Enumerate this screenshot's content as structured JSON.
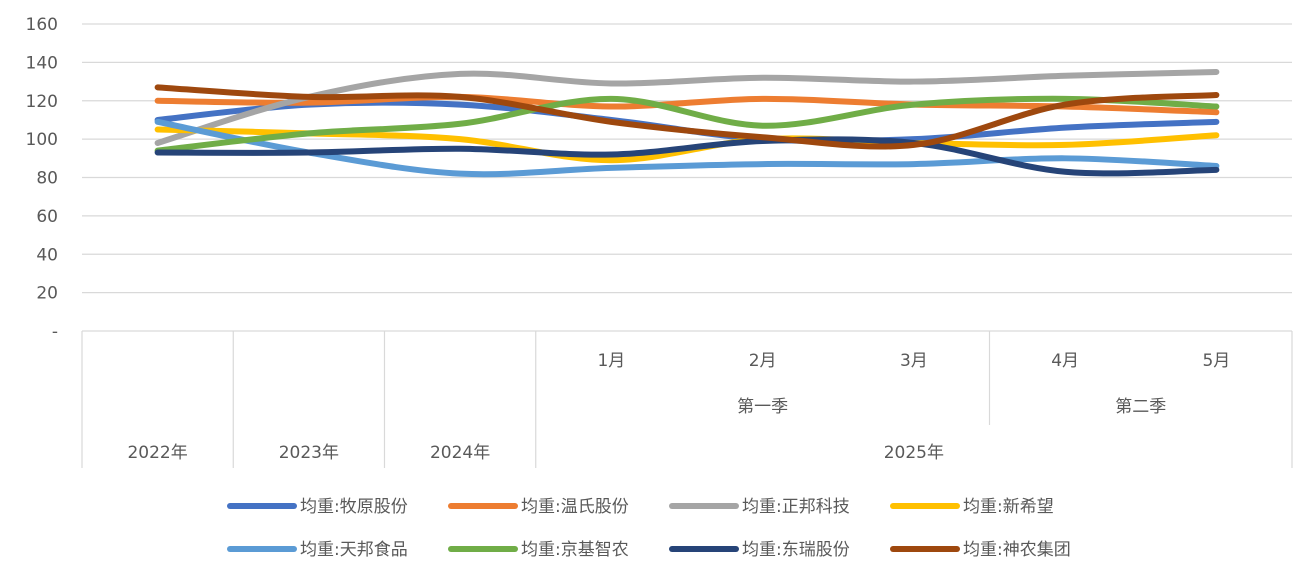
{
  "chart_data": {
    "type": "line",
    "title": "",
    "xlabel": "",
    "ylabel": "",
    "ylim": [
      0,
      160
    ],
    "y_ticks": [
      "-",
      "20",
      "40",
      "60",
      "80",
      "100",
      "120",
      "140",
      "160"
    ],
    "grid": true,
    "legend_position": "bottom",
    "smooth": true,
    "categories": [
      "2022年",
      "2023年",
      "2024年",
      "1月",
      "2月",
      "3月",
      "4月",
      "5月"
    ],
    "axis_levels": {
      "months": [
        "1月",
        "2月",
        "3月",
        "4月",
        "5月"
      ],
      "quarters": [
        "第一季",
        "第二季"
      ],
      "years": [
        "2022年",
        "2023年",
        "2024年",
        "2025年"
      ]
    },
    "series": [
      {
        "name": "均重:牧原股份",
        "color": "#4472C4",
        "values": [
          110,
          118,
          118,
          110,
          100,
          100,
          106,
          109
        ]
      },
      {
        "name": "均重:温氏股份",
        "color": "#ED7D31",
        "values": [
          120,
          119,
          122,
          117,
          121,
          118,
          117,
          114
        ]
      },
      {
        "name": "均重:正邦科技",
        "color": "#A5A5A5",
        "values": [
          98,
          122,
          134,
          129,
          132,
          130,
          133,
          135
        ]
      },
      {
        "name": "均重:新希望",
        "color": "#FFC000",
        "values": [
          105,
          103,
          100,
          89,
          100,
          98,
          97,
          102
        ]
      },
      {
        "name": "均重:天邦食品",
        "color": "#5B9BD5",
        "values": [
          109,
          93,
          82,
          85,
          87,
          87,
          90,
          86
        ]
      },
      {
        "name": "均重:京基智农",
        "color": "#70AD47",
        "values": [
          94,
          103,
          108,
          121,
          107,
          118,
          121,
          117
        ]
      },
      {
        "name": "均重:东瑞股份",
        "color": "#264478",
        "values": [
          93,
          93,
          95,
          92,
          99,
          98,
          83,
          84
        ]
      },
      {
        "name": "均重:神农集团",
        "color": "#9E480E",
        "values": [
          127,
          122,
          122,
          109,
          101,
          97,
          118,
          123
        ]
      }
    ]
  }
}
